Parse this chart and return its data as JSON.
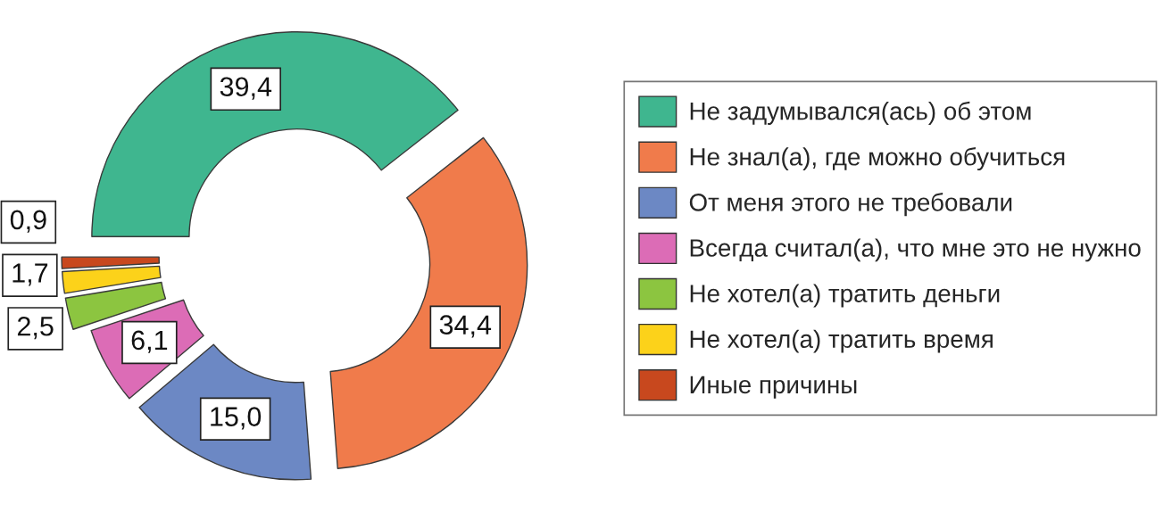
{
  "chart_data": {
    "type": "donut",
    "categories": [
      "Не задумывался(ась) об этом",
      "Не знал(а), где можно обучиться",
      "От меня этого не требовали",
      "Всегда считал(а), что мне это не нужно",
      "Не хотел(а) тратить деньги",
      "Не хотел(а) тратить время",
      "Иные причины"
    ],
    "values": [
      39.4,
      34.4,
      15.0,
      6.1,
      2.5,
      1.7,
      0.9
    ],
    "colors": [
      "#3fb68f",
      "#f07b4b",
      "#6c88c4",
      "#dc6cb6",
      "#8cc540",
      "#fcd21a",
      "#c8481e"
    ],
    "value_labels": [
      "39,4",
      "34,4",
      "15,0",
      "6,1",
      "2,5",
      "1,7",
      "0,9"
    ],
    "legend": "right"
  }
}
